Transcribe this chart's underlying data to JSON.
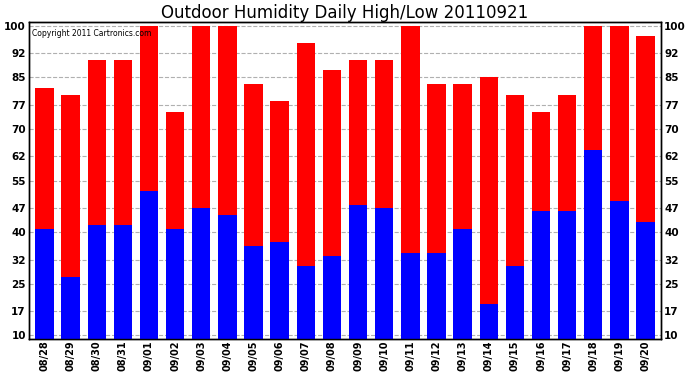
{
  "title": "Outdoor Humidity Daily High/Low 20110921",
  "copyright": "Copyright 2011 Cartronics.com",
  "categories": [
    "08/28",
    "08/29",
    "08/30",
    "08/31",
    "09/01",
    "09/02",
    "09/03",
    "09/04",
    "09/05",
    "09/06",
    "09/07",
    "09/08",
    "09/09",
    "09/10",
    "09/11",
    "09/12",
    "09/13",
    "09/14",
    "09/15",
    "09/16",
    "09/17",
    "09/18",
    "09/19",
    "09/20"
  ],
  "highs": [
    82,
    80,
    90,
    90,
    100,
    75,
    100,
    100,
    83,
    78,
    95,
    87,
    90,
    90,
    100,
    83,
    83,
    85,
    80,
    75,
    80,
    100,
    100,
    97
  ],
  "lows": [
    41,
    27,
    42,
    42,
    52,
    41,
    47,
    45,
    36,
    37,
    30,
    33,
    48,
    47,
    34,
    34,
    41,
    19,
    30,
    46,
    46,
    64,
    49,
    43
  ],
  "bar_color_high": "#ff0000",
  "bar_color_low": "#0000ff",
  "background_color": "#ffffff",
  "plot_bg_color": "#ffffff",
  "title_fontsize": 12,
  "yticks": [
    10,
    17,
    25,
    32,
    40,
    47,
    55,
    62,
    70,
    77,
    85,
    92,
    100
  ],
  "ymin": 10,
  "ymax": 100,
  "grid_color": "#b0b0b0",
  "bar_width": 0.7
}
